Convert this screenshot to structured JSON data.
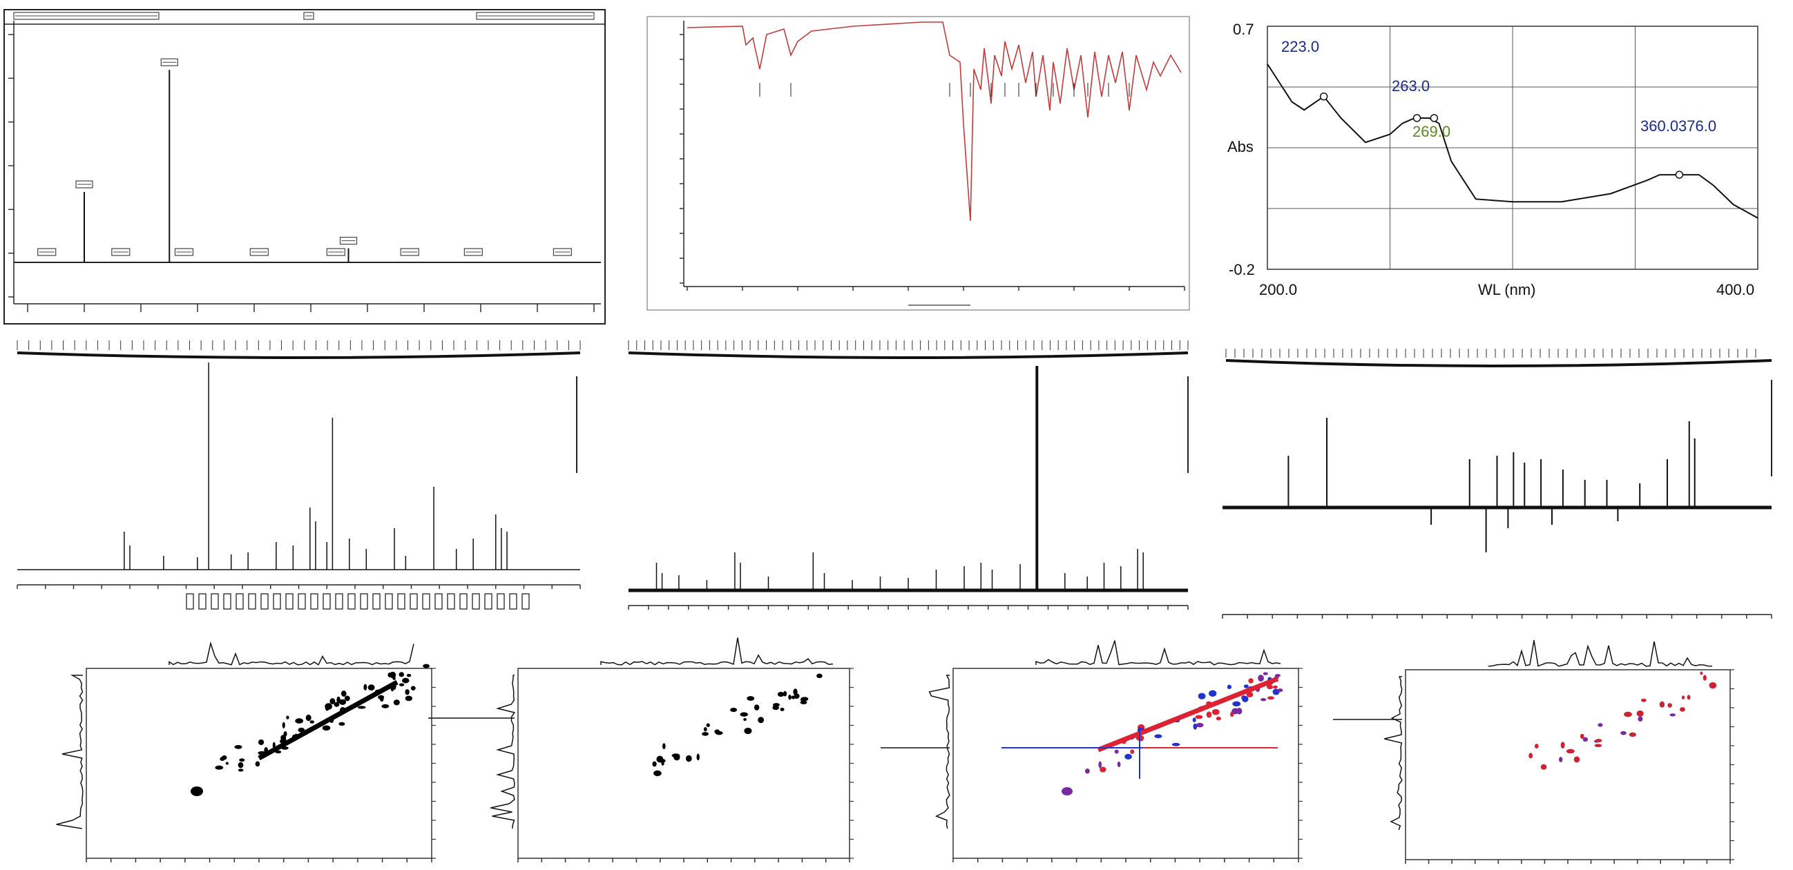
{
  "chart_data": [
    {
      "type": "line",
      "panel": "chromatogram",
      "peaks": [
        {
          "x": 0.12,
          "y": 0.3
        },
        {
          "x": 0.265,
          "y": 0.82
        },
        {
          "x": 0.57,
          "y": 0.06
        }
      ]
    },
    {
      "type": "line",
      "panel": "ir-spectrum"
    },
    {
      "type": "line",
      "panel": "uv-spectrum",
      "title": "",
      "xlabel": "WL (nm)",
      "ylabel": "Abs",
      "xlim": [
        200.0,
        400.0
      ],
      "ylim": [
        -0.2,
        0.7
      ],
      "x_tick_labels": [
        "200.0",
        "400.0"
      ],
      "y_tick_labels": [
        "0.7",
        "-0.2"
      ],
      "series": [
        {
          "x": [
            200,
            205,
            210,
            215,
            223,
            230,
            240,
            250,
            255,
            260,
            263,
            266,
            270,
            275,
            285,
            300,
            320,
            340,
            355,
            360,
            368,
            376,
            382,
            390,
            400
          ],
          "y": [
            0.56,
            0.49,
            0.42,
            0.39,
            0.44,
            0.36,
            0.27,
            0.3,
            0.34,
            0.36,
            0.36,
            0.36,
            0.34,
            0.2,
            0.06,
            0.05,
            0.05,
            0.08,
            0.13,
            0.15,
            0.15,
            0.15,
            0.11,
            0.04,
            -0.01
          ]
        }
      ],
      "peak_labels": [
        {
          "text": "223.0",
          "x": 223,
          "y": 0.44,
          "color": "#1a2a8c"
        },
        {
          "text": "263.0",
          "x": 261,
          "y": 0.36,
          "color": "#1a2a8c"
        },
        {
          "text": "269.0",
          "x": 268,
          "y": 0.36,
          "color": "#5a8a1a"
        },
        {
          "text": "360.0376.0",
          "x": 368,
          "y": 0.15,
          "color": "#1a2a8c"
        }
      ],
      "grid": true
    },
    {
      "type": "line",
      "panel": "1h-nmr"
    },
    {
      "type": "line",
      "panel": "13c-nmr"
    },
    {
      "type": "line",
      "panel": "dept"
    },
    {
      "type": "heatmap",
      "panel": "cosy",
      "color": "#000000"
    },
    {
      "type": "heatmap",
      "panel": "hmbc",
      "color": "#000000"
    },
    {
      "type": "heatmap",
      "panel": "noesy",
      "colors": [
        "#2233cc",
        "#dd2233",
        "#7a2aa0"
      ]
    },
    {
      "type": "heatmap",
      "panel": "hsqc",
      "colors": [
        "#cc2233",
        "#7a2aa0"
      ]
    }
  ],
  "colors": {
    "ir_trace": "#c23a3a",
    "uv_label_blue": "#1a2a8c",
    "uv_label_green": "#5a8a1a",
    "noesy_blue": "#2233cc",
    "noesy_red": "#dd2233",
    "noesy_purple": "#7a2aa0"
  }
}
